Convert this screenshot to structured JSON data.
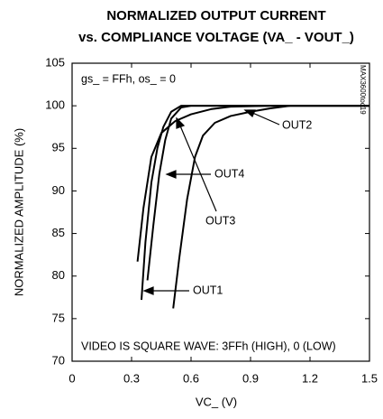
{
  "chart_data": {
    "type": "line",
    "title": [
      "NORMALIZED OUTPUT CURRENT",
      "vs. COMPLIANCE VOLTAGE (VA_ - VOUT_)"
    ],
    "xlabel": "VC_ (V)",
    "ylabel": "NORMALIZED AMPLITUDE (%)",
    "annotations": [
      "gs_ = FFh, os_ = 0",
      "VIDEO IS SQUARE WAVE: 3FFh (HIGH), 0 (LOW)",
      "MAX3600toc19"
    ],
    "xlim": [
      0,
      1.5
    ],
    "xticks": [
      0,
      0.3,
      0.6,
      0.9,
      1.2,
      1.5
    ],
    "ylim": [
      70,
      105
    ],
    "yticks": [
      70,
      75,
      80,
      85,
      90,
      95,
      100,
      105
    ],
    "grid": false,
    "series": [
      {
        "name": "OUT1",
        "color": "#000000",
        "x": [
          0.35,
          0.37,
          0.4,
          0.43,
          0.46,
          0.5,
          0.55,
          0.6,
          0.7,
          1.5
        ],
        "values": [
          77.2,
          84,
          91,
          95,
          97.5,
          99.3,
          100,
          100,
          100,
          100
        ]
      },
      {
        "name": "OUT2",
        "color": "#000000",
        "x": [
          0.51,
          0.54,
          0.58,
          0.62,
          0.66,
          0.72,
          0.8,
          0.9,
          1.0,
          1.1,
          1.5
        ],
        "values": [
          76.2,
          82,
          89,
          94,
          96.5,
          98,
          98.8,
          99.3,
          99.7,
          100,
          100
        ]
      },
      {
        "name": "OUT3",
        "color": "#000000",
        "x": [
          0.33,
          0.36,
          0.4,
          0.45,
          0.52,
          0.6,
          0.7,
          0.8,
          1.0,
          1.5
        ],
        "values": [
          81.7,
          88,
          94,
          96.8,
          98.2,
          99,
          99.6,
          99.9,
          100,
          100
        ]
      },
      {
        "name": "OUT4",
        "color": "#000000",
        "x": [
          0.38,
          0.41,
          0.44,
          0.47,
          0.5,
          0.55,
          0.6,
          1.5
        ],
        "values": [
          79.5,
          86,
          92,
          96,
          98.5,
          99.8,
          100,
          100
        ]
      }
    ]
  }
}
